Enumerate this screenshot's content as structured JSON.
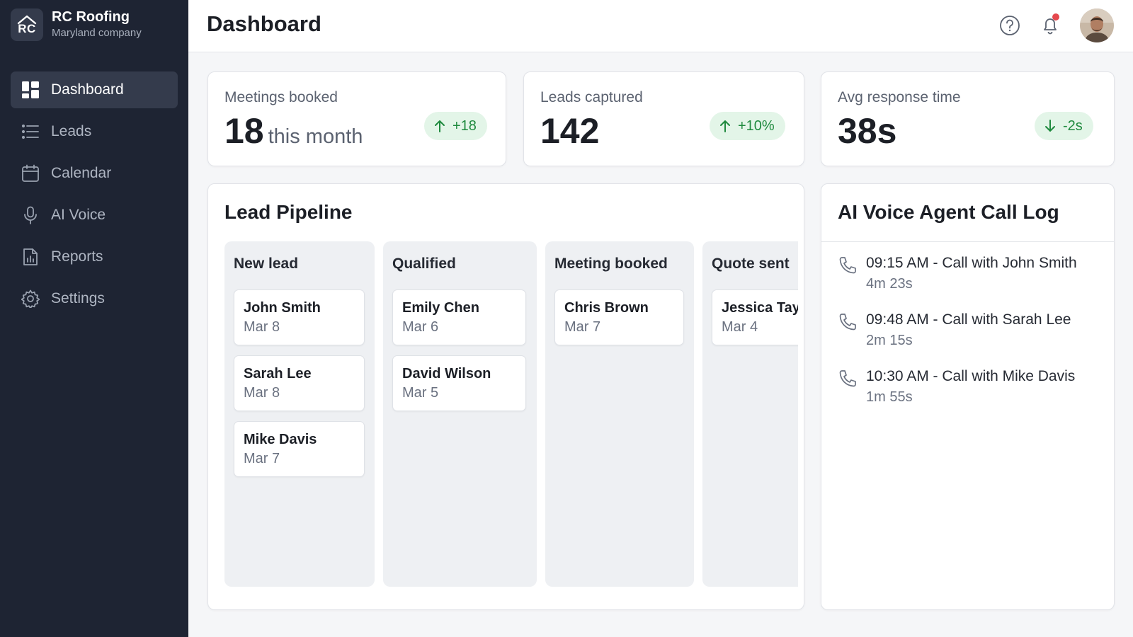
{
  "brand": {
    "logo_text": "RC",
    "name": "RC Roofing",
    "subtitle": "Maryland company"
  },
  "nav": [
    {
      "label": "Dashboard",
      "icon": "dashboard-icon",
      "active": true
    },
    {
      "label": "Leads",
      "icon": "list-icon"
    },
    {
      "label": "Calendar",
      "icon": "calendar-icon"
    },
    {
      "label": "AI Voice",
      "icon": "microphone-icon"
    },
    {
      "label": "Reports",
      "icon": "report-icon"
    },
    {
      "label": "Settings",
      "icon": "gear-icon"
    }
  ],
  "header": {
    "title": "Dashboard",
    "notification_dot": true
  },
  "stats": [
    {
      "label": "Meetings booked",
      "value": "18",
      "unit": "this month",
      "change": "+18",
      "direction": "up"
    },
    {
      "label": "Leads captured",
      "value": "142",
      "unit": "",
      "change": "+10%",
      "direction": "up"
    },
    {
      "label": "Avg response time",
      "value": "38s",
      "unit": "",
      "change": "-2s",
      "direction": "down"
    }
  ],
  "pipeline": {
    "title": "Lead Pipeline",
    "columns": [
      {
        "title": "New lead",
        "leads": [
          {
            "name": "John Smith",
            "date": "Mar 8"
          },
          {
            "name": "Sarah Lee",
            "date": "Mar 8"
          },
          {
            "name": "Mike Davis",
            "date": "Mar 7"
          }
        ]
      },
      {
        "title": "Qualified",
        "leads": [
          {
            "name": "Emily Chen",
            "date": "Mar 6"
          },
          {
            "name": "David Wilson",
            "date": "Mar 5"
          }
        ]
      },
      {
        "title": "Meeting booked",
        "leads": [
          {
            "name": "Chris Brown",
            "date": "Mar 7"
          }
        ]
      },
      {
        "title": "Quote sent",
        "leads": [
          {
            "name": "Jessica Taylo",
            "date": "Mar 4"
          }
        ]
      }
    ]
  },
  "call_log": {
    "title": "AI Voice Agent Call Log",
    "calls": [
      {
        "title": "09:15 AM - Call with John Smith",
        "duration": "4m 23s"
      },
      {
        "title": "09:48 AM - Call with Sarah Lee",
        "duration": "2m 15s"
      },
      {
        "title": "10:30 AM - Call with Mike Davis",
        "duration": "1m 55s"
      }
    ]
  },
  "colors": {
    "sidebar": "#1e2433",
    "sidebar_active": "#343b4c",
    "positive": "#1f8a3e",
    "positive_bg": "#e3f5e8",
    "notification": "#e5484d"
  }
}
